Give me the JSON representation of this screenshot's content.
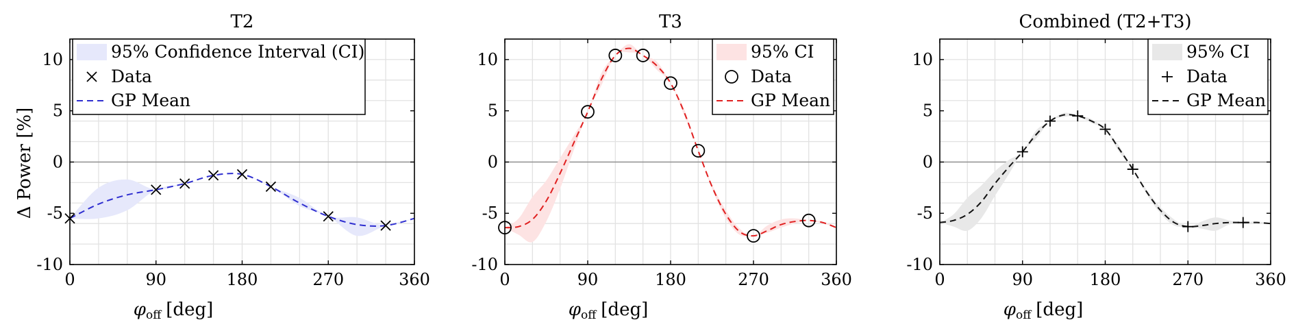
{
  "figure": {
    "ylabel": "Δ Power [%]",
    "xlabel_symbol": "φ",
    "xlabel_sub": "off",
    "xlabel_unit": "[deg]"
  },
  "chart_data": [
    {
      "type": "line",
      "title": "T2",
      "color": "#2f2fd0",
      "band_color": "#e6e8fb",
      "marker": "x",
      "xlim": [
        0,
        360
      ],
      "ylim": [
        -10,
        12
      ],
      "xticks": [
        0,
        90,
        180,
        270,
        360
      ],
      "yticks": [
        -10,
        -5,
        0,
        5,
        10
      ],
      "legend": {
        "ci": "95% Confidence Interval (CI)",
        "data": "Data",
        "mean": "GP Mean",
        "position": "top-left"
      },
      "data_points": {
        "x": [
          0,
          90,
          120,
          150,
          180,
          210,
          270,
          330
        ],
        "y": [
          -5.5,
          -2.7,
          -2.1,
          -1.3,
          -1.2,
          -2.4,
          -5.3,
          -6.2
        ]
      },
      "gp_mean": {
        "x": [
          0,
          30,
          60,
          90,
          120,
          150,
          180,
          210,
          240,
          270,
          300,
          330,
          360
        ],
        "y": [
          -5.5,
          -4.1,
          -3.2,
          -2.7,
          -2.1,
          -1.3,
          -1.2,
          -2.4,
          -4.0,
          -5.3,
          -6.1,
          -6.2,
          -5.5
        ]
      },
      "ci_lower": [
        -5.5,
        -5.5,
        -4.7,
        -2.7,
        -2.1,
        -1.3,
        -1.2,
        -2.4,
        -4.3,
        -5.3,
        -7.2,
        -6.2,
        -5.5
      ],
      "ci_upper": [
        -5.5,
        -2.5,
        -1.7,
        -2.7,
        -2.1,
        -1.3,
        -1.2,
        -2.4,
        -3.5,
        -5.3,
        -5.4,
        -6.2,
        -5.5
      ]
    },
    {
      "type": "line",
      "title": "T3",
      "color": "#e02020",
      "band_color": "#fde3e3",
      "marker": "o",
      "xlim": [
        0,
        360
      ],
      "ylim": [
        -10,
        12
      ],
      "xticks": [
        0,
        90,
        180,
        270,
        360
      ],
      "yticks": [
        -10,
        -5,
        0,
        5,
        10
      ],
      "legend": {
        "ci": "95% CI",
        "data": "Data",
        "mean": "GP Mean",
        "position": "top-right"
      },
      "data_points": {
        "x": [
          0,
          90,
          120,
          150,
          180,
          210,
          270,
          330
        ],
        "y": [
          -6.4,
          4.9,
          10.4,
          10.4,
          7.7,
          1.1,
          -7.2,
          -5.7
        ]
      },
      "gp_mean": {
        "x": [
          0,
          15,
          30,
          45,
          60,
          75,
          90,
          105,
          120,
          135,
          150,
          165,
          180,
          195,
          210,
          225,
          240,
          255,
          270,
          285,
          300,
          315,
          330,
          345,
          360
        ],
        "y": [
          -6.4,
          -6.3,
          -5.6,
          -3.8,
          -1.1,
          1.9,
          4.9,
          8.1,
          10.4,
          11.1,
          10.4,
          9.4,
          7.7,
          4.8,
          1.1,
          -2.4,
          -5.1,
          -6.8,
          -7.2,
          -6.7,
          -6.1,
          -5.8,
          -5.7,
          -5.9,
          -6.4
        ]
      },
      "ci_lower": [
        -6.4,
        -7.1,
        -7.8,
        -5.8,
        -2.6,
        1.2,
        4.9,
        7.5,
        10.4,
        10.7,
        10.4,
        9.0,
        7.7,
        4.5,
        1.1,
        -2.6,
        -5.5,
        -7.1,
        -7.2,
        -6.9,
        -6.4,
        -6.0,
        -5.7,
        -6.0,
        -6.4
      ],
      "ci_upper": [
        -6.4,
        -5.5,
        -3.4,
        -1.8,
        0.4,
        2.6,
        4.9,
        8.7,
        10.4,
        11.5,
        10.4,
        9.8,
        7.7,
        5.1,
        1.1,
        -2.2,
        -4.7,
        -6.5,
        -7.2,
        -6.2,
        -5.6,
        -5.5,
        -5.7,
        -5.8,
        -6.4
      ]
    },
    {
      "type": "line",
      "title": "Combined (T2+T3)",
      "color": "#111111",
      "band_color": "#e8e8e8",
      "marker": "+",
      "xlim": [
        0,
        360
      ],
      "ylim": [
        -10,
        12
      ],
      "xticks": [
        0,
        90,
        180,
        270,
        360
      ],
      "yticks": [
        -10,
        -5,
        0,
        5,
        10
      ],
      "legend": {
        "ci": "95% CI",
        "data": "Data",
        "mean": "GP Mean",
        "position": "top-right"
      },
      "data_points": {
        "x": [
          90,
          120,
          150,
          180,
          210,
          270,
          330
        ],
        "y": [
          1.0,
          4.0,
          4.5,
          3.2,
          -0.7,
          -6.3,
          -5.9
        ]
      },
      "gp_mean": {
        "x": [
          0,
          15,
          30,
          45,
          60,
          75,
          90,
          105,
          120,
          135,
          150,
          165,
          180,
          195,
          210,
          225,
          240,
          255,
          270,
          285,
          300,
          315,
          330,
          345,
          360
        ],
        "y": [
          -5.9,
          -5.7,
          -5.1,
          -3.9,
          -2.1,
          -0.5,
          1.0,
          2.7,
          4.0,
          4.6,
          4.5,
          4.0,
          3.2,
          1.3,
          -0.7,
          -2.9,
          -4.7,
          -5.9,
          -6.3,
          -6.2,
          -6.0,
          -5.9,
          -5.9,
          -5.9,
          -6.0
        ]
      },
      "ci_lower": [
        -5.9,
        -6.3,
        -6.7,
        -5.5,
        -3.3,
        -1.2,
        1.0,
        2.3,
        4.0,
        4.4,
        4.5,
        3.8,
        3.2,
        1.0,
        -0.7,
        -3.1,
        -5.0,
        -6.2,
        -6.3,
        -6.5,
        -6.7,
        -6.1,
        -5.9,
        -6.0,
        -6.0
      ],
      "ci_upper": [
        -5.9,
        -5.1,
        -3.5,
        -2.3,
        -0.9,
        0.2,
        1.0,
        3.1,
        4.0,
        4.8,
        4.5,
        4.2,
        3.2,
        1.6,
        -0.7,
        -2.7,
        -4.4,
        -5.6,
        -6.3,
        -5.8,
        -5.4,
        -5.7,
        -5.9,
        -5.8,
        -6.0
      ]
    }
  ]
}
